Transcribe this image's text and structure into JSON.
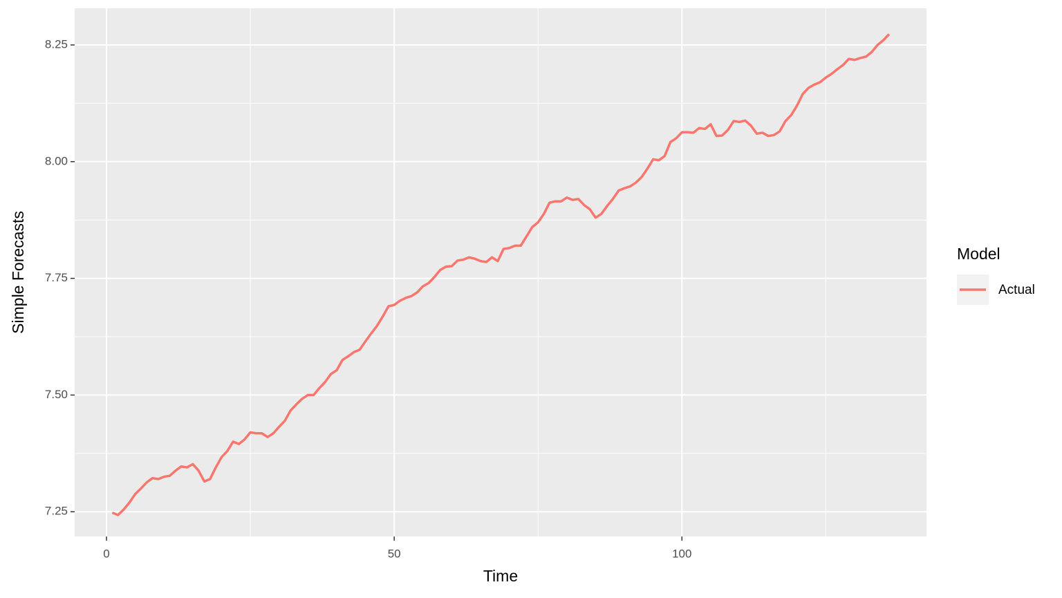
{
  "chart_data": {
    "type": "line",
    "x_label": "Time",
    "y_label": "Simple Forecasts",
    "legend_title": "Model",
    "legend_position": "right",
    "xlim": [
      -5.53,
      142.5
    ],
    "ylim": [
      7.197,
      8.3285
    ],
    "xticks": [
      0,
      50,
      100
    ],
    "x_minor_ticks": [
      25,
      75,
      125
    ],
    "yticks": [
      7.25,
      {
        "value": 7.5,
        "label": "7.50"
      },
      7.75,
      {
        "value": 8,
        "label": "8.00"
      },
      8.25
    ],
    "y_minor_ticks": [
      7.375,
      7.625,
      7.875,
      8.125
    ],
    "grid": true,
    "x": [
      1,
      2,
      3,
      4,
      5,
      6,
      7,
      8,
      9,
      10,
      11,
      12,
      13,
      14,
      15,
      16,
      17,
      18,
      19,
      20,
      21,
      22,
      23,
      24,
      25,
      26,
      27,
      28,
      29,
      30,
      31,
      32,
      33,
      34,
      35,
      36,
      37,
      38,
      39,
      40,
      41,
      42,
      43,
      44,
      45,
      46,
      47,
      48,
      49,
      50,
      51,
      52,
      53,
      54,
      55,
      56,
      57,
      58,
      59,
      60,
      61,
      62,
      63,
      64,
      65,
      66,
      67,
      68,
      69,
      70,
      71,
      72,
      73,
      74,
      75,
      76,
      77,
      78,
      79,
      80,
      81,
      82,
      83,
      84,
      85,
      86,
      87,
      88,
      89,
      90,
      91,
      92,
      93,
      94,
      95,
      96,
      97,
      98,
      99,
      100,
      101,
      102,
      103,
      104,
      105,
      106,
      107,
      108,
      109,
      110,
      111,
      112,
      113,
      114,
      115,
      116,
      117,
      118,
      119,
      120,
      121,
      122,
      123,
      124,
      125,
      126,
      127,
      128,
      129,
      130,
      131,
      132,
      133,
      134,
      135,
      136
    ],
    "series": [
      {
        "name": "Actual",
        "color": "#f8766d",
        "values": [
          7.248,
          7.243,
          7.255,
          7.27,
          7.288,
          7.3,
          7.313,
          7.322,
          7.32,
          7.325,
          7.327,
          7.338,
          7.347,
          7.345,
          7.352,
          7.338,
          7.315,
          7.32,
          7.345,
          7.367,
          7.38,
          7.4,
          7.395,
          7.405,
          7.42,
          7.418,
          7.418,
          7.41,
          7.418,
          7.432,
          7.445,
          7.467,
          7.48,
          7.492,
          7.5,
          7.5,
          7.515,
          7.528,
          7.545,
          7.553,
          7.575,
          7.583,
          7.592,
          7.597,
          7.615,
          7.632,
          7.648,
          7.668,
          7.69,
          7.693,
          7.702,
          7.708,
          7.712,
          7.72,
          7.733,
          7.74,
          7.753,
          7.768,
          7.775,
          7.776,
          7.788,
          7.79,
          7.795,
          7.792,
          7.787,
          7.785,
          7.795,
          7.787,
          7.813,
          7.815,
          7.82,
          7.82,
          7.84,
          7.86,
          7.87,
          7.888,
          7.912,
          7.915,
          7.915,
          7.923,
          7.918,
          7.92,
          7.907,
          7.898,
          7.88,
          7.888,
          7.905,
          7.92,
          7.938,
          7.943,
          7.947,
          7.955,
          7.967,
          7.985,
          8.005,
          8.003,
          8.012,
          8.042,
          8.05,
          8.063,
          8.063,
          8.062,
          8.072,
          8.07,
          8.08,
          8.055,
          8.056,
          8.068,
          8.087,
          8.085,
          8.088,
          8.077,
          8.06,
          8.062,
          8.055,
          8.057,
          8.065,
          8.087,
          8.1,
          8.12,
          8.145,
          8.158,
          8.165,
          8.17,
          8.18,
          8.188,
          8.198,
          8.207,
          8.22,
          8.218,
          8.222,
          8.225,
          8.235,
          8.25,
          8.26,
          8.273
        ]
      }
    ]
  }
}
